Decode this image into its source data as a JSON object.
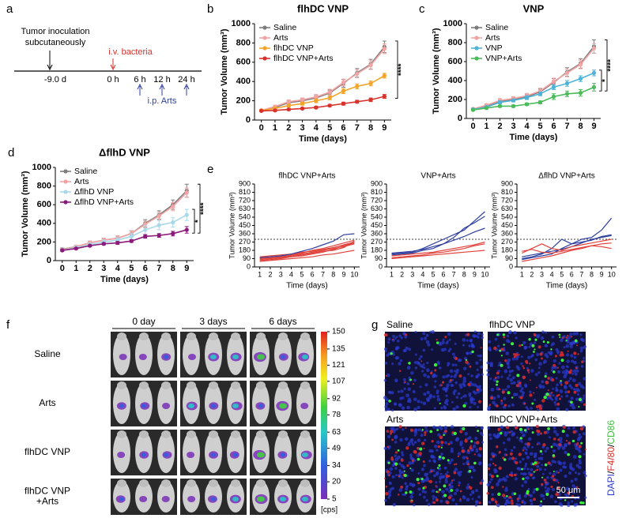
{
  "timeline": {
    "panel": "a",
    "inoculation": [
      "Tumor inoculation",
      "subcutaneously"
    ],
    "bacteria": "i.v. bacteria",
    "times": [
      "-9.0 d",
      "0 h",
      "6 h",
      "12 h",
      "24 h"
    ],
    "treatment": "i.p. Arts"
  },
  "chart_data": [
    {
      "type": "line",
      "panel": "b",
      "title": "flhDC VNP",
      "xlabel": "Time (days)",
      "ylabel": "Tumor Volume (mm³)",
      "x": [
        0,
        1,
        2,
        3,
        4,
        5,
        6,
        7,
        8,
        9
      ],
      "xlim": [
        -0.5,
        9.5
      ],
      "xticks": [
        0,
        1,
        2,
        3,
        4,
        5,
        6,
        7,
        8,
        9
      ],
      "ylim": [
        0,
        1000
      ],
      "yticks": [
        0,
        200,
        400,
        600,
        800,
        1000
      ],
      "legend": "upper left",
      "markers": true,
      "series": [
        {
          "name": "Saline",
          "color": "#7d7d7d",
          "values": [
            100,
            130,
            180,
            200,
            230,
            280,
            380,
            490,
            580,
            760
          ],
          "errors": [
            10,
            15,
            20,
            20,
            25,
            30,
            40,
            45,
            50,
            60
          ]
        },
        {
          "name": "Arts",
          "color": "#f2a3a3",
          "values": [
            100,
            140,
            190,
            210,
            240,
            290,
            390,
            480,
            570,
            740
          ],
          "errors": [
            10,
            15,
            20,
            20,
            25,
            30,
            35,
            40,
            45,
            50
          ]
        },
        {
          "name": "flhDC VNP",
          "color": "#f3a52a",
          "values": [
            100,
            120,
            150,
            170,
            200,
            230,
            300,
            350,
            380,
            460
          ],
          "errors": [
            10,
            10,
            15,
            15,
            20,
            20,
            25,
            25,
            25,
            25
          ]
        },
        {
          "name": "flhDC VNP+Arts",
          "color": "#d9312b",
          "values": [
            95,
            100,
            110,
            120,
            130,
            150,
            170,
            190,
            210,
            245
          ],
          "errors": [
            8,
            10,
            10,
            10,
            12,
            12,
            15,
            15,
            18,
            20
          ]
        }
      ],
      "significance": [
        "****"
      ]
    },
    {
      "type": "line",
      "panel": "c",
      "title": "VNP",
      "xlabel": "Time (days)",
      "ylabel": "Tumor Volume (mm³)",
      "x": [
        0,
        1,
        2,
        3,
        4,
        5,
        6,
        7,
        8,
        9
      ],
      "xlim": [
        -0.5,
        9.5
      ],
      "xticks": [
        0,
        1,
        2,
        3,
        4,
        5,
        6,
        7,
        8,
        9
      ],
      "ylim": [
        0,
        1000
      ],
      "yticks": [
        0,
        200,
        400,
        600,
        800,
        1000
      ],
      "legend": "upper left",
      "markers": true,
      "series": [
        {
          "name": "Saline",
          "color": "#7d7d7d",
          "values": [
            100,
            130,
            180,
            200,
            230,
            280,
            380,
            490,
            580,
            760
          ],
          "errors": [
            10,
            15,
            20,
            20,
            25,
            30,
            40,
            45,
            50,
            70
          ]
        },
        {
          "name": "Arts",
          "color": "#f2a3a3",
          "values": [
            100,
            140,
            190,
            210,
            240,
            290,
            390,
            480,
            570,
            740
          ],
          "errors": [
            10,
            15,
            20,
            20,
            25,
            30,
            35,
            40,
            45,
            50
          ]
        },
        {
          "name": "VNP",
          "color": "#4fb3d9",
          "values": [
            95,
            120,
            170,
            190,
            220,
            260,
            330,
            370,
            420,
            480
          ],
          "errors": [
            10,
            10,
            15,
            15,
            20,
            20,
            25,
            30,
            30,
            30
          ]
        },
        {
          "name": "VNP+Arts",
          "color": "#4cbb5a",
          "values": [
            90,
            110,
            130,
            130,
            150,
            170,
            230,
            260,
            270,
            330
          ],
          "errors": [
            8,
            10,
            10,
            12,
            12,
            15,
            30,
            30,
            35,
            40
          ]
        }
      ],
      "significance": [
        "****",
        "*"
      ]
    },
    {
      "type": "line",
      "panel": "d",
      "title": "ΔflhD VNP",
      "xlabel": "Time (days)",
      "ylabel": "Tumor Volume (mm³)",
      "x": [
        0,
        1,
        2,
        3,
        4,
        5,
        6,
        7,
        8,
        9
      ],
      "xlim": [
        -0.5,
        9.5
      ],
      "xticks": [
        0,
        1,
        2,
        3,
        4,
        5,
        6,
        7,
        8,
        9
      ],
      "ylim": [
        0,
        1000
      ],
      "yticks": [
        0,
        200,
        400,
        600,
        800,
        1000
      ],
      "legend": "upper left",
      "markers": true,
      "series": [
        {
          "name": "Saline",
          "color": "#7d7d7d",
          "values": [
            120,
            150,
            190,
            220,
            240,
            290,
            400,
            490,
            600,
            750
          ],
          "errors": [
            15,
            15,
            20,
            20,
            25,
            30,
            40,
            45,
            50,
            70
          ]
        },
        {
          "name": "Arts",
          "color": "#f2a3a3",
          "values": [
            115,
            150,
            190,
            220,
            240,
            290,
            390,
            480,
            580,
            730
          ],
          "errors": [
            12,
            15,
            20,
            20,
            25,
            30,
            35,
            40,
            45,
            50
          ]
        },
        {
          "name": "ΔflhD VNP",
          "color": "#a8d8ea",
          "values": [
            110,
            140,
            170,
            200,
            220,
            260,
            330,
            380,
            410,
            490
          ],
          "errors": [
            10,
            15,
            20,
            20,
            25,
            30,
            50,
            50,
            50,
            60
          ]
        },
        {
          "name": "ΔflhD VNP+Arts",
          "color": "#8b1a7a",
          "values": [
            110,
            130,
            160,
            180,
            190,
            210,
            260,
            270,
            290,
            330
          ],
          "errors": [
            10,
            10,
            12,
            12,
            15,
            15,
            20,
            20,
            25,
            35
          ]
        }
      ],
      "significance": [
        "****",
        "*"
      ]
    },
    {
      "type": "spaghetti",
      "panel": "e",
      "title": "flhDC VNP+Arts",
      "xlabel": "Time (days)",
      "ylabel": "Tumor Volume (mm³)",
      "x": [
        1,
        2,
        3,
        4,
        5,
        6,
        7,
        8,
        9,
        10
      ],
      "xlim": [
        0.5,
        10.5
      ],
      "xticks": [
        1,
        2,
        3,
        4,
        5,
        6,
        7,
        8,
        9,
        10
      ],
      "ylim": [
        0,
        900
      ],
      "yticks": [
        0,
        90,
        180,
        270,
        360,
        450,
        540,
        630,
        720,
        810,
        900
      ],
      "reference_line": 300,
      "series": [
        {
          "color": "#e0413a",
          "values": [
            80,
            90,
            100,
            110,
            120,
            140,
            160,
            190,
            230,
            260
          ]
        },
        {
          "color": "#e0413a",
          "values": [
            100,
            95,
            105,
            120,
            140,
            160,
            180,
            200,
            220,
            250
          ]
        },
        {
          "color": "#e0413a",
          "values": [
            70,
            80,
            90,
            110,
            130,
            150,
            170,
            180,
            210,
            280
          ]
        },
        {
          "color": "#e0413a",
          "values": [
            90,
            100,
            110,
            130,
            150,
            180,
            200,
            230,
            260,
            290
          ]
        },
        {
          "color": "#e0413a",
          "values": [
            60,
            70,
            80,
            90,
            100,
            110,
            130,
            140,
            160,
            180
          ]
        },
        {
          "color": "#e0413a",
          "values": [
            110,
            120,
            130,
            140,
            160,
            170,
            190,
            210,
            240,
            270
          ]
        },
        {
          "color": "#2e3f9e",
          "values": [
            100,
            110,
            120,
            140,
            170,
            200,
            240,
            280,
            350,
            360
          ]
        }
      ]
    },
    {
      "type": "spaghetti",
      "title": "VNP+Arts",
      "xlabel": "Time (days)",
      "ylabel": "Tumor Volume (mm³)",
      "x": [
        1,
        2,
        3,
        4,
        5,
        6,
        7,
        8,
        9,
        10
      ],
      "xlim": [
        0.5,
        10.5
      ],
      "xticks": [
        1,
        2,
        3,
        4,
        5,
        6,
        7,
        8,
        9,
        10
      ],
      "ylim": [
        0,
        900
      ],
      "yticks": [
        0,
        90,
        180,
        270,
        360,
        450,
        540,
        630,
        720,
        810,
        900
      ],
      "reference_line": 300,
      "series": [
        {
          "color": "#2e3f9e",
          "values": [
            140,
            150,
            160,
            200,
            250,
            300,
            350,
            400,
            500,
            600
          ]
        },
        {
          "color": "#2e3f9e",
          "values": [
            130,
            140,
            150,
            180,
            200,
            250,
            320,
            420,
            480,
            550
          ]
        },
        {
          "color": "#2e3f9e",
          "values": [
            150,
            160,
            170,
            190,
            220,
            250,
            290,
            330,
            380,
            420
          ]
        },
        {
          "color": "#e0413a",
          "values": [
            100,
            110,
            120,
            130,
            150,
            160,
            180,
            200,
            230,
            250
          ]
        },
        {
          "color": "#e0413a",
          "values": [
            120,
            130,
            140,
            150,
            160,
            180,
            200,
            220,
            240,
            270
          ]
        },
        {
          "color": "#e0413a",
          "values": [
            90,
            100,
            110,
            120,
            130,
            140,
            150,
            160,
            170,
            180
          ]
        }
      ]
    },
    {
      "type": "spaghetti",
      "title": "ΔflhD VNP+Arts",
      "xlabel": "Time (days)",
      "ylabel": "Tumor Volume (mm³)",
      "x": [
        1,
        2,
        3,
        4,
        5,
        6,
        7,
        8,
        9,
        10
      ],
      "xlim": [
        0.5,
        10.5
      ],
      "xticks": [
        1,
        2,
        3,
        4,
        5,
        6,
        7,
        8,
        9,
        10
      ],
      "ylim": [
        0,
        900
      ],
      "yticks": [
        0,
        90,
        180,
        270,
        360,
        450,
        540,
        630,
        720,
        810,
        900
      ],
      "reference_line": 300,
      "series": [
        {
          "color": "#2e3f9e",
          "values": [
            80,
            100,
            120,
            140,
            200,
            250,
            300,
            320,
            400,
            530
          ]
        },
        {
          "color": "#2e3f9e",
          "values": [
            90,
            110,
            140,
            200,
            300,
            250,
            270,
            290,
            330,
            350
          ]
        },
        {
          "color": "#2e3f9e",
          "values": [
            110,
            130,
            150,
            170,
            190,
            220,
            260,
            300,
            320,
            340
          ]
        },
        {
          "color": "#e0413a",
          "values": [
            150,
            200,
            250,
            200,
            180,
            220,
            240,
            260,
            280,
            300
          ]
        },
        {
          "color": "#e0413a",
          "values": [
            60,
            80,
            100,
            120,
            150,
            180,
            200,
            230,
            250,
            260
          ]
        },
        {
          "color": "#e0413a",
          "values": [
            170,
            190,
            160,
            150,
            170,
            190,
            210,
            230,
            220,
            200
          ]
        }
      ]
    }
  ],
  "imaging": {
    "panel": "f",
    "columns": [
      "0 day",
      "3 days",
      "6 days"
    ],
    "rows": [
      [
        "Saline"
      ],
      [
        "Arts"
      ],
      [
        "flhDC VNP"
      ],
      [
        "flhDC VNP",
        "+Arts"
      ]
    ],
    "colorbar": {
      "lim": [
        5,
        150
      ],
      "ticks": [
        150,
        135,
        121,
        107,
        92,
        78,
        63,
        49,
        34,
        20,
        5
      ],
      "unit": "[cps]"
    }
  },
  "staining": {
    "panel": "g",
    "images": [
      "Saline",
      "flhDC VNP",
      "Arts",
      "flhDC VNP+Arts"
    ],
    "legend": [
      {
        "text": "DAPI",
        "color": "#2b3bd0"
      },
      {
        "text": "/",
        "color": "#000000"
      },
      {
        "text": "F4/80",
        "color": "#d9312b"
      },
      {
        "text": "/",
        "color": "#000000"
      },
      {
        "text": "CD86",
        "color": "#3cbf3c"
      }
    ],
    "scale_bar": "50 μm"
  }
}
